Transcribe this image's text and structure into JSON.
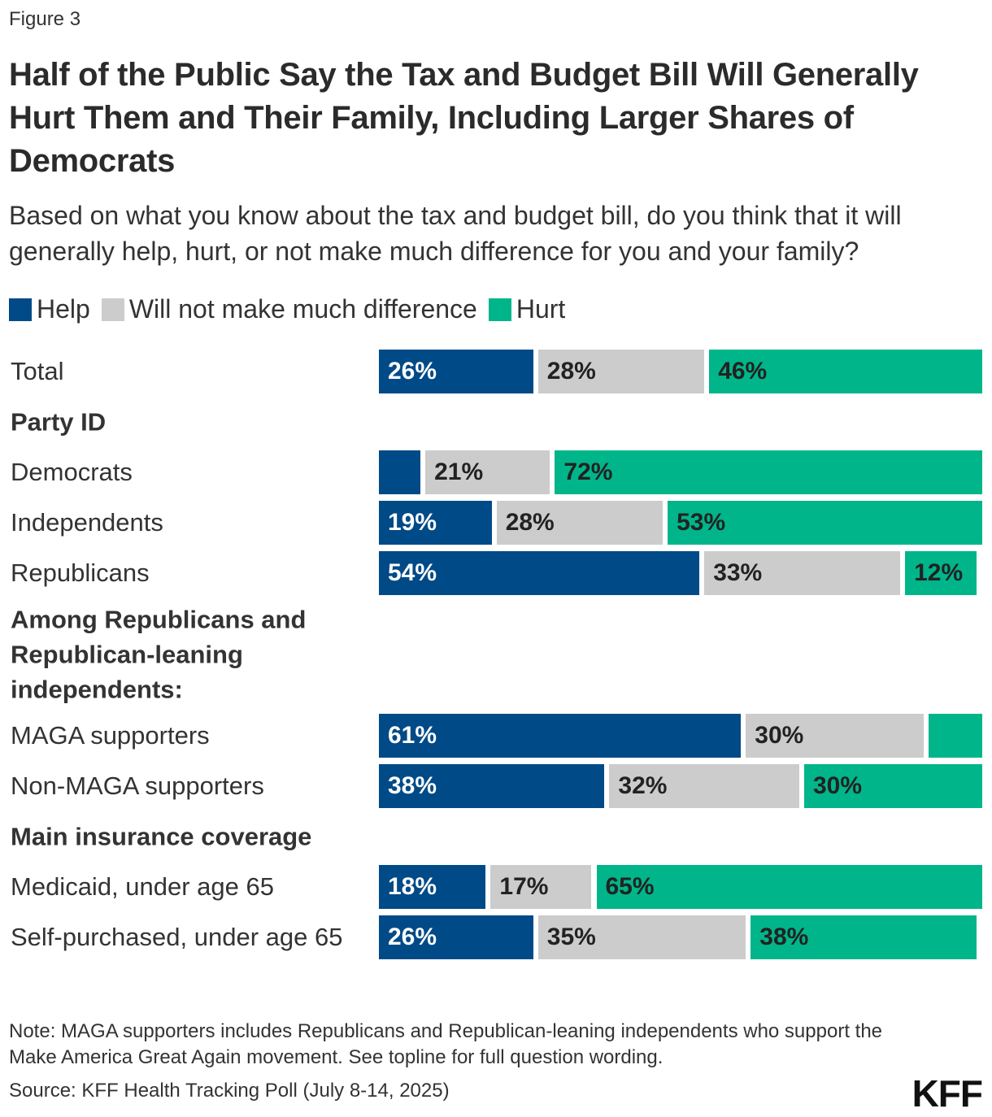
{
  "figure_label": "Figure 3",
  "title": "Half of the Public Say the Tax and Budget Bill Will Generally Hurt Them and Their Family, Including Larger Shares of Democrats",
  "subtitle": "Based on what you know about the tax and budget bill, do you think that it will generally help, hurt, or not make much difference for you and your family?",
  "note": "Note: MAGA supporters includes Republicans and Republican-leaning independents who support the Make America Great Again movement. See topline for full question wording.",
  "source": "Source: KFF Health Tracking Poll (July 8-14, 2025)",
  "logo": "KFF",
  "chart_data": {
    "type": "bar",
    "orientation": "horizontal",
    "stacked": true,
    "title": "Half of the Public Say the Tax and Budget Bill Will Generally Hurt Them and Their Family, Including Larger Shares of Democrats",
    "legend_position": "top-left",
    "series": [
      {
        "name": "Help",
        "color": "#004a87"
      },
      {
        "name": "Will not make much difference",
        "color": "#cccccc"
      },
      {
        "name": "Hurt",
        "color": "#00b58a"
      }
    ],
    "rows": [
      {
        "label": "Total",
        "values": [
          26,
          28,
          46
        ]
      },
      {
        "heading": "Party ID"
      },
      {
        "label": "Democrats",
        "values": [
          7,
          21,
          72
        ]
      },
      {
        "label": "Independents",
        "values": [
          19,
          28,
          53
        ]
      },
      {
        "label": "Republicans",
        "values": [
          54,
          33,
          12
        ]
      },
      {
        "heading": "Among Republicans and Republican-leaning independents:",
        "tall": true
      },
      {
        "label": "MAGA supporters",
        "values": [
          61,
          30,
          9
        ]
      },
      {
        "label": "Non-MAGA supporters",
        "values": [
          38,
          32,
          30
        ]
      },
      {
        "heading": "Main insurance coverage"
      },
      {
        "label": "Medicaid, under age 65",
        "values": [
          18,
          17,
          65
        ]
      },
      {
        "label": "Self-purchased, under age 65",
        "values": [
          26,
          35,
          38
        ]
      }
    ],
    "xlim": [
      0,
      100
    ]
  }
}
